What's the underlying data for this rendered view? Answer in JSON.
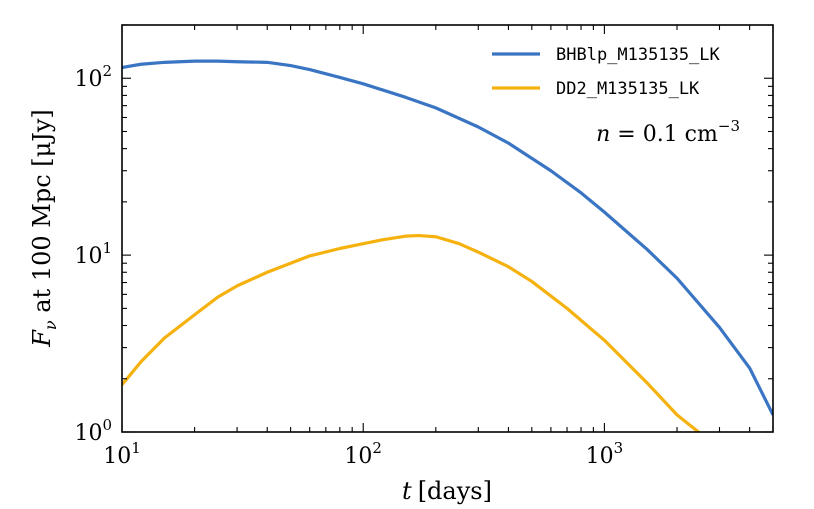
{
  "chart_data": {
    "type": "line",
    "title": "",
    "xscale": "log",
    "yscale": "log",
    "xlim": [
      10,
      5000
    ],
    "ylim": [
      1,
      200
    ],
    "xlabel_var": "t",
    "xlabel_unit": "[days]",
    "ylabel_var": "F",
    "ylabel_sub": "ν",
    "ylabel_rest": " at 100 Mpc [μJy]",
    "x_ticks": [
      {
        "value": 10,
        "base": "10",
        "exp": "1"
      },
      {
        "value": 100,
        "base": "10",
        "exp": "2"
      },
      {
        "value": 1000,
        "base": "10",
        "exp": "3"
      }
    ],
    "y_ticks": [
      {
        "value": 1,
        "base": "10",
        "exp": "0"
      },
      {
        "value": 10,
        "base": "10",
        "exp": "1"
      },
      {
        "value": 100,
        "base": "10",
        "exp": "2"
      }
    ],
    "annotation": {
      "var": "n",
      "eq": " = 0.1 cm",
      "exp": "−3"
    },
    "legend_position": "top-right",
    "series": [
      {
        "name": "BHBlp_M135135_LK",
        "color": "#3a75c4",
        "x": [
          10,
          12,
          15,
          20,
          25,
          30,
          40,
          50,
          60,
          80,
          100,
          150,
          200,
          300,
          400,
          600,
          800,
          1000,
          1500,
          2000,
          3000,
          4000,
          5000
        ],
        "y": [
          115,
          120,
          123,
          125,
          125,
          124,
          123,
          118,
          112,
          101,
          93,
          78,
          68,
          53,
          43,
          30,
          22.5,
          17.5,
          10.8,
          7.4,
          3.9,
          2.3,
          1.25
        ]
      },
      {
        "name": "DD2_M135135_LK",
        "color": "#f5b20f",
        "x": [
          10,
          12,
          15,
          20,
          25,
          30,
          40,
          50,
          60,
          80,
          100,
          120,
          150,
          170,
          200,
          250,
          300,
          400,
          500,
          700,
          1000,
          1500,
          2000,
          2500
        ],
        "y": [
          1.85,
          2.5,
          3.4,
          4.6,
          5.8,
          6.7,
          8.0,
          9.0,
          9.9,
          10.9,
          11.6,
          12.2,
          12.8,
          12.9,
          12.7,
          11.6,
          10.4,
          8.6,
          7.1,
          5.0,
          3.3,
          1.9,
          1.25,
          0.98
        ]
      }
    ]
  }
}
